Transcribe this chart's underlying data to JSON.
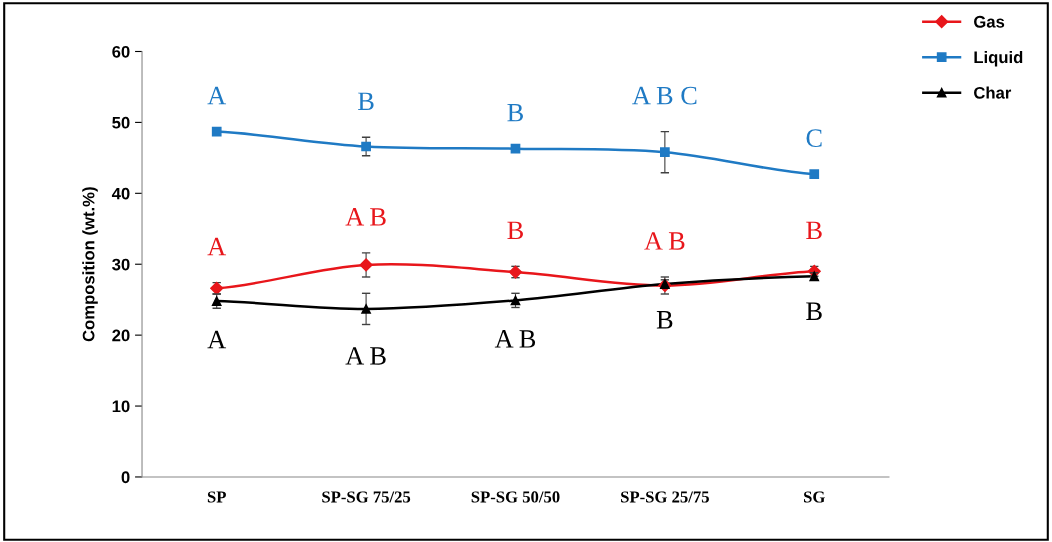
{
  "chart_data": {
    "type": "line",
    "ylabel": "Composition (wt.%)",
    "categories": [
      "SP",
      "SP-SG 75/25",
      "SP-SG 50/50",
      "SP-SG 25/75",
      "SG"
    ],
    "series": [
      {
        "name": "Gas",
        "color": "#e8161b",
        "marker": "diamond",
        "values": [
          26.6,
          29.9,
          28.9,
          27.0,
          29.0
        ],
        "errors": [
          0.8,
          1.7,
          0.8,
          1.2,
          0.7
        ]
      },
      {
        "name": "Liquid",
        "color": "#1f7ac4",
        "marker": "square",
        "values": [
          48.7,
          46.6,
          46.3,
          45.8,
          42.7
        ],
        "errors": [
          null,
          1.3,
          null,
          2.9,
          null
        ]
      },
      {
        "name": "Char",
        "color": "#000000",
        "marker": "triangle",
        "values": [
          24.8,
          23.7,
          24.9,
          27.2,
          28.3
        ],
        "errors": [
          1.0,
          2.2,
          1.0,
          0.6,
          0.5
        ]
      }
    ],
    "annotations": [
      "A",
      "A B",
      "B",
      "A B",
      "B",
      "A",
      "B",
      "B",
      "A B C",
      "C",
      "A",
      "A B",
      "A B",
      "B",
      "B"
    ],
    "ylim": [
      0,
      60
    ],
    "yticks": [
      0,
      10,
      20,
      30,
      40,
      50,
      60
    ],
    "grid": false,
    "legend": "top right",
    "line_style": "solid"
  }
}
